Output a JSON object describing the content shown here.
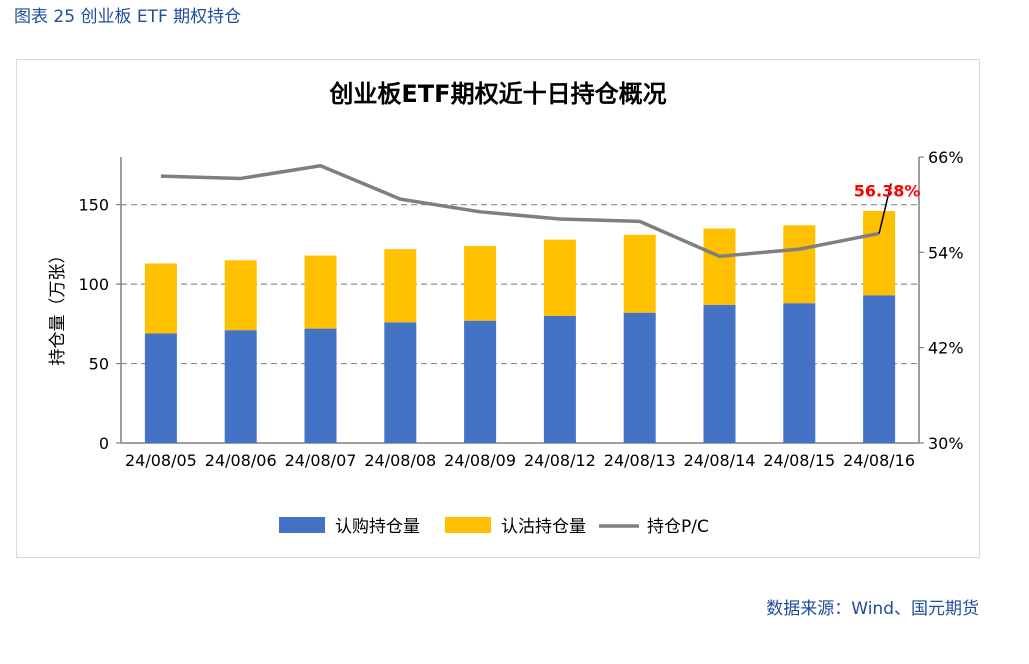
{
  "figure_caption": "图表 25 创业板 ETF 期权持仓",
  "source": "数据来源：Wind、国元期货",
  "chart_data": {
    "type": "bar",
    "stacked": true,
    "title": "创业板ETF期权近十日持仓概况",
    "ylabel": "持仓量（万张）",
    "y2label": "",
    "categories": [
      "24/08/05",
      "24/08/06",
      "24/08/07",
      "24/08/08",
      "24/08/09",
      "24/08/12",
      "24/08/13",
      "24/08/14",
      "24/08/15",
      "24/08/16"
    ],
    "ylim": [
      0,
      180
    ],
    "yticks": [
      0,
      50,
      100,
      150
    ],
    "y2lim": [
      30,
      66
    ],
    "y2ticks": [
      "30%",
      "42%",
      "54%",
      "66%"
    ],
    "y2tick_values": [
      30,
      42,
      54,
      66
    ],
    "grid": "dashed at 50, 100, 150",
    "legend_position": "bottom",
    "series": [
      {
        "name": "认购持仓量",
        "type": "bar",
        "color": "#4472c4",
        "axis": "left",
        "values": [
          69,
          71,
          72,
          76,
          77,
          80,
          82,
          87,
          88,
          93
        ]
      },
      {
        "name": "认沽持仓量",
        "type": "bar",
        "color": "#ffc000",
        "axis": "left",
        "values": [
          44,
          44,
          46,
          46,
          47,
          48,
          49,
          48,
          49,
          53
        ]
      },
      {
        "name": "持仓P/C",
        "type": "line",
        "color": "#7f7f7f",
        "axis": "right",
        "values": [
          63.6,
          63.3,
          64.9,
          60.7,
          59.1,
          58.2,
          57.9,
          53.5,
          54.4,
          56.38
        ]
      }
    ],
    "annotation": {
      "text": "56.38%",
      "color": "#ff0000",
      "index": 9
    }
  }
}
